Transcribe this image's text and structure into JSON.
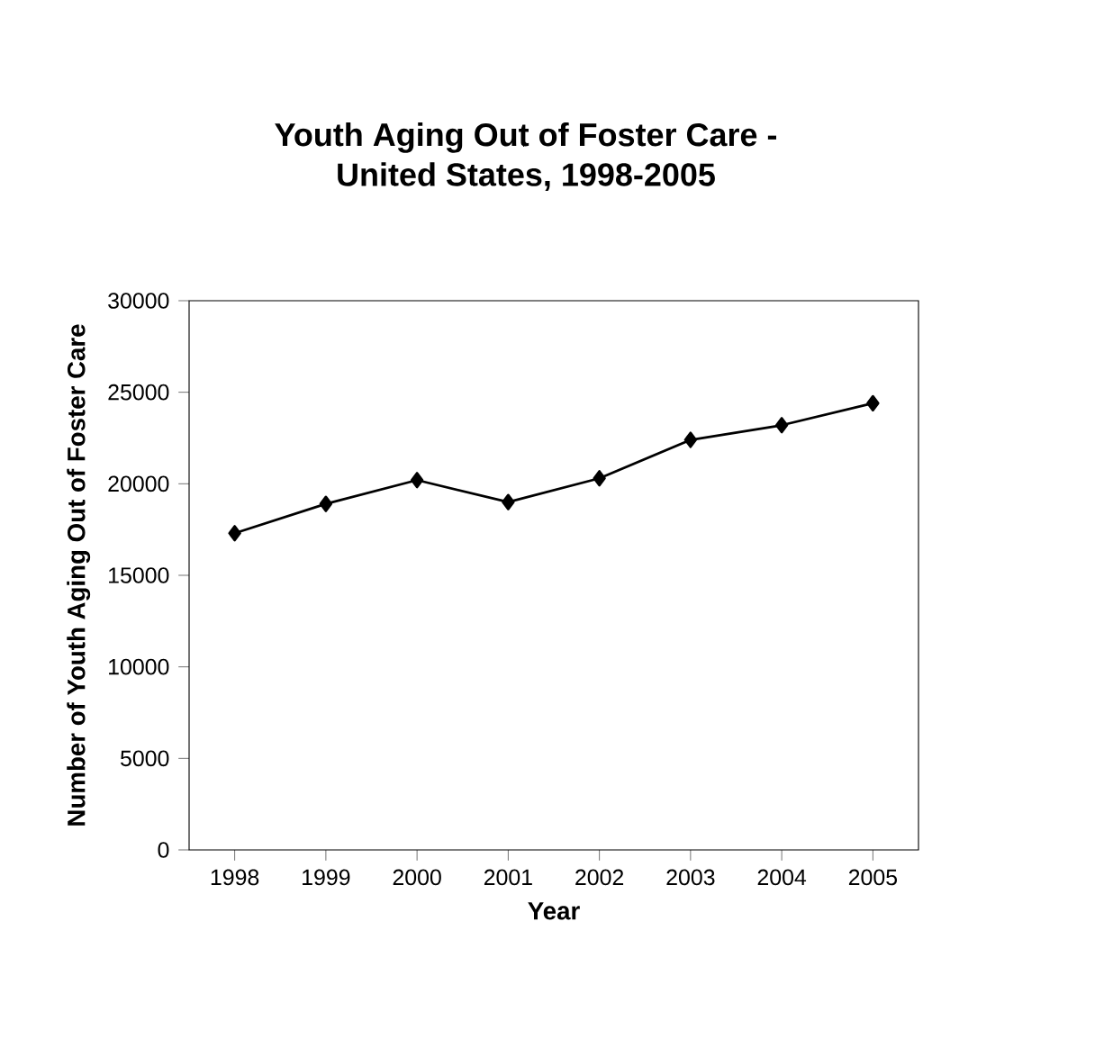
{
  "chart_data": {
    "type": "line",
    "title": "Youth Aging Out of Foster Care -\nUnited States, 1998-2005",
    "xlabel": "Year",
    "ylabel": "Number of Youth Aging Out of Foster Care",
    "categories": [
      "1998",
      "1999",
      "2000",
      "2001",
      "2002",
      "2003",
      "2004",
      "2005"
    ],
    "values": [
      17300,
      18900,
      20200,
      19000,
      20300,
      22400,
      23200,
      24400
    ],
    "color": "#000000",
    "marker": "diamond",
    "line_style": "solid",
    "grid": false,
    "ylim": [
      0,
      30000
    ],
    "yticks": [
      0,
      5000,
      10000,
      15000,
      20000,
      25000,
      30000
    ]
  }
}
